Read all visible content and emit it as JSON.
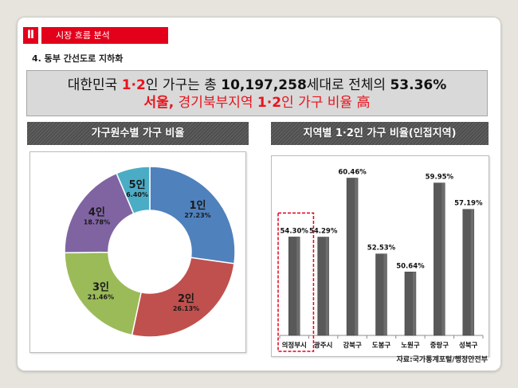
{
  "colors": {
    "accent": "#e3001b"
  },
  "section": {
    "number": "Ⅱ",
    "title": "시장 흐름 분석"
  },
  "subtitle": "4. 동부 간선도로 지하화",
  "headline": {
    "line1": [
      "대한민국 ",
      "1·2",
      "인 가구는 총 ",
      "10,197,258",
      "세대로 전체의 ",
      "53.36%"
    ],
    "line2": [
      "서울,",
      " 경기북부지역 ",
      "1·2",
      "인 가구 비율 高"
    ]
  },
  "chart_data": [
    {
      "type": "pie",
      "donut": true,
      "title": "가구원수별 가구 비율",
      "categories": [
        "1인",
        "2인",
        "3인",
        "4인",
        "5인"
      ],
      "values": [
        27.23,
        26.13,
        21.46,
        18.78,
        6.4
      ],
      "data_labels": [
        "27.23%",
        "26.13%",
        "21.46%",
        "18.78%",
        "6.40%"
      ],
      "colors": [
        "#4f81bd",
        "#c0504d",
        "#9bbb59",
        "#8064a2",
        "#4bacc6"
      ],
      "legend": "none"
    },
    {
      "type": "bar",
      "title": "지역별 1·2인 가구 비율(인접지역)",
      "categories": [
        "의정부시",
        "광주시",
        "강북구",
        "도봉구",
        "노원구",
        "중랑구",
        "성북구"
      ],
      "values": [
        54.3,
        54.29,
        60.46,
        52.53,
        50.64,
        59.95,
        57.19
      ],
      "data_labels": [
        "54.30%",
        "54.29%",
        "60.46%",
        "52.53%",
        "50.64%",
        "59.95%",
        "57.19%"
      ],
      "ylim": [
        44,
        62
      ],
      "grid": false,
      "color": "#595959",
      "highlight_index": 0,
      "highlight_color": "#e3001b"
    }
  ],
  "source": "자료:국가통계포털/행정안전부"
}
